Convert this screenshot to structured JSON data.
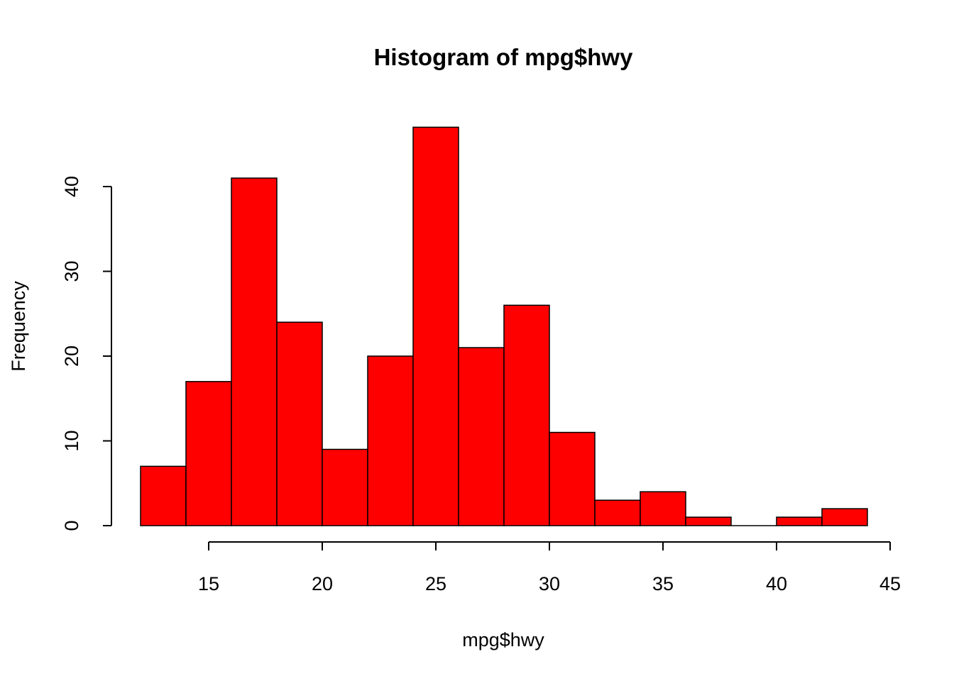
{
  "chart_data": {
    "type": "bar",
    "title": "Histogram of mpg$hwy",
    "xlabel": "mpg$hwy",
    "ylabel": "Frequency",
    "bins": [
      {
        "start": 12,
        "end": 14,
        "count": 7
      },
      {
        "start": 14,
        "end": 16,
        "count": 17
      },
      {
        "start": 16,
        "end": 18,
        "count": 41
      },
      {
        "start": 18,
        "end": 20,
        "count": 24
      },
      {
        "start": 20,
        "end": 22,
        "count": 9
      },
      {
        "start": 22,
        "end": 24,
        "count": 20
      },
      {
        "start": 24,
        "end": 26,
        "count": 47
      },
      {
        "start": 26,
        "end": 28,
        "count": 21
      },
      {
        "start": 28,
        "end": 30,
        "count": 26
      },
      {
        "start": 30,
        "end": 32,
        "count": 11
      },
      {
        "start": 32,
        "end": 34,
        "count": 3
      },
      {
        "start": 34,
        "end": 36,
        "count": 4
      },
      {
        "start": 36,
        "end": 38,
        "count": 1
      },
      {
        "start": 38,
        "end": 40,
        "count": 0
      },
      {
        "start": 40,
        "end": 42,
        "count": 1
      },
      {
        "start": 42,
        "end": 44,
        "count": 2
      }
    ],
    "xticks": [
      15,
      20,
      25,
      30,
      35,
      40,
      45
    ],
    "xtick_labels": [
      "15",
      "20",
      "25",
      "30",
      "35",
      "40",
      "45"
    ],
    "yticks": [
      0,
      10,
      20,
      30,
      40
    ],
    "ytick_labels": [
      "0",
      "10",
      "20",
      "30",
      "40"
    ],
    "xlim": [
      12,
      44
    ],
    "ylim": [
      0,
      47
    ],
    "grid": false,
    "legend": "none",
    "bar_color": "#ff0000",
    "border_color": "#000000"
  }
}
